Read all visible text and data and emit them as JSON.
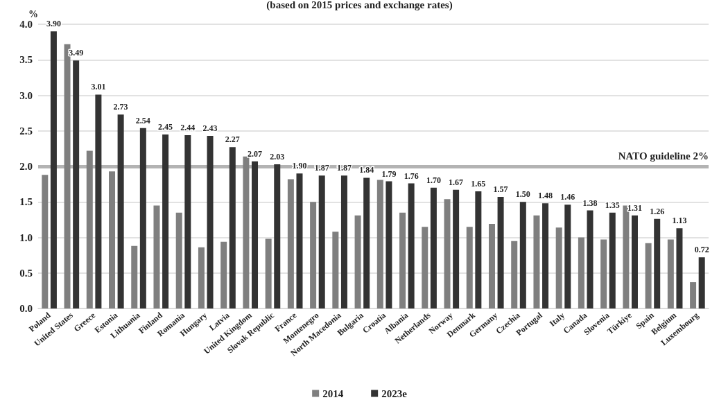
{
  "chart_data": {
    "type": "bar",
    "subtitle": "(based on 2015 prices and exchange rates)",
    "ylabel": "%",
    "categories": [
      "Poland",
      "United States",
      "Greece",
      "Estonia",
      "Lithuania",
      "Finland",
      "Romania",
      "Hungary",
      "Latvia",
      "United Kingdom",
      "Slovak Republic",
      "France",
      "Montenegro",
      "North Macedonia",
      "Bulgaria",
      "Croatia",
      "Albania",
      "Netherlands",
      "Norway",
      "Denmark",
      "Germany",
      "Czechia",
      "Portugal",
      "Italy",
      "Canada",
      "Slovenia",
      "Türkiye",
      "Spain",
      "Belgium",
      "Luxembourg"
    ],
    "series": [
      {
        "name": "2014",
        "color": "#7f7f7f",
        "values": [
          1.88,
          3.72,
          2.22,
          1.93,
          0.88,
          1.45,
          1.35,
          0.86,
          0.94,
          2.14,
          0.98,
          1.82,
          1.5,
          1.08,
          1.31,
          1.81,
          1.35,
          1.15,
          1.54,
          1.15,
          1.19,
          0.95,
          1.31,
          1.14,
          1.0,
          0.97,
          1.45,
          0.92,
          0.97,
          0.37
        ]
      },
      {
        "name": "2023e",
        "color": "#333333",
        "values": [
          3.9,
          3.49,
          3.01,
          2.73,
          2.54,
          2.45,
          2.44,
          2.43,
          2.27,
          2.07,
          2.03,
          1.9,
          1.87,
          1.87,
          1.84,
          1.79,
          1.76,
          1.7,
          1.67,
          1.65,
          1.57,
          1.5,
          1.48,
          1.46,
          1.38,
          1.35,
          1.31,
          1.26,
          1.13,
          0.72
        ],
        "value_labels": [
          "3.90",
          "3.49",
          "3.01",
          "2.73",
          "2.54",
          "2.45",
          "2.44",
          "2.43",
          "2.27",
          "2.07",
          "2.03",
          "1.90",
          "1.87",
          "1.87",
          "1.84",
          "1.79",
          "1.76",
          "1.70",
          "1.67",
          "1.65",
          "1.57",
          "1.50",
          "1.48",
          "1.46",
          "1.38",
          "1.35",
          "1.31",
          "1.26",
          "1.13",
          "0.72"
        ]
      }
    ],
    "ylim": [
      0,
      4
    ],
    "yticks": [
      {
        "value": 0,
        "label": "0.0"
      },
      0.5,
      {
        "value": 1,
        "label": "1.0"
      },
      1.5,
      {
        "value": 2,
        "label": "2.0"
      },
      2.5,
      {
        "value": 3,
        "label": "3.0"
      },
      3.5,
      {
        "value": 4,
        "label": "4.0"
      }
    ],
    "ref_lines": [
      {
        "axis": "y",
        "value": 2,
        "label": "NATO guideline 2%",
        "color": "#b3b3b3"
      }
    ],
    "grid": "y",
    "legend": "bottom"
  }
}
